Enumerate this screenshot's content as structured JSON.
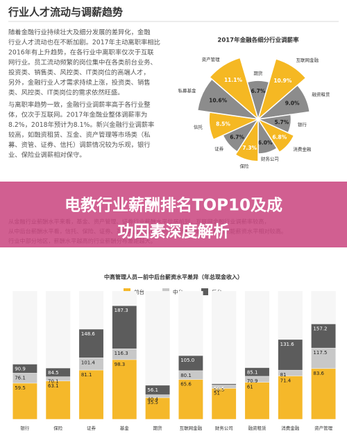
{
  "header": {
    "title": "行业人才流动与调薪趋势"
  },
  "paragraphs": [
    [
      "随着金融行业持续壮大及细分发展的差异化，金融",
      "行业人才流动也在不断加剧。2017年主动离职率相比",
      "2016年有上升趋势，在各行业中离职率仅次于互联",
      "网行业。员工流动频繁的岗位集中在各类前台业务、",
      "投资类、销售类、风控类、IT类岗位的高端人才，",
      "另外，金融行业人才需求持续上涨，投资类、销售",
      "类、风控类、IT类岗位的需求依然旺盛。"
    ],
    [
      "与离职率趋势一致，金融行业调薪率高于各行业整",
      "体，仅次于互联网。2017年金融业整体调薪率为",
      "8.2%，2018年预计为8.1%。新兴金融行业调薪率",
      "较高，如融资租赁、互金、资产管理等市场类（私",
      "募、资管、证券、信托）调薪情况较为乐观，银行",
      "业、保险业调薪相对保守。"
    ]
  ],
  "banner": {
    "lines": [
      "电教行业薪酬排名TOP10及成",
      "功因素深度解析"
    ]
  },
  "body": {
    "lines": [
      "从金融行业薪酬水平来看，基金、资产管理、证券行业薪酬水平位居前列，互联网金融行业调薪率较高，",
      "从中后台薪酬水平看，信托、保险、证券、互联网金融等行业前中后台差距较大，后台职能薪资水平相对较高。",
      "行业中部分地区，薪酬水平越高的行业薪酬分布差距越大。"
    ]
  },
  "chart_data": [
    {
      "type": "rose",
      "title": "2017年金融各细分行业调薪率",
      "categories": [
        "期货",
        "互联网金融",
        "融资租赁",
        "银行",
        "消费金融",
        "财务公司",
        "保险",
        "证券",
        "信托",
        "私募基金",
        "资产管理"
      ],
      "values": [
        6.7,
        10.9,
        9.0,
        5.7,
        6.8,
        6.0,
        7.3,
        6.7,
        8.5,
        10.6,
        11.1
      ],
      "value_labels": [
        "6.7%",
        "10.9%",
        "9.0%",
        "5.7%",
        "6.8%",
        "6.0%",
        "7.3%",
        "6.7%",
        "8.5%",
        "10.6%",
        "11.1%"
      ],
      "colors": [
        "#8c8c8c",
        "#f5b823",
        "#8c8c8c",
        "#8c8c8c",
        "#f5b823",
        "#8c8c8c",
        "#f5b823",
        "#8c8c8c",
        "#f5b823",
        "#8c8c8c",
        "#f5b823"
      ],
      "rlim": [
        0,
        12
      ]
    },
    {
      "type": "bar",
      "title": "中高管理人员—前中后台薪资水平差异（年总现金收入）",
      "categories": [
        "银行",
        "保险",
        "证券",
        "基金",
        "期货",
        "互联网金融",
        "财务公司",
        "融资租赁",
        "消费金融",
        "资产管理"
      ],
      "series": [
        {
          "name": "前台",
          "color": "#f5b82a",
          "values": [
            59.5,
            63.1,
            81.1,
            98.3,
            35.5,
            65.6,
            51,
            61,
            71.4,
            83.6
          ]
        },
        {
          "name": "中台",
          "color": "#c8c8c8",
          "values": [
            76.1,
            70.1,
            101.4,
            116.3,
            40.4,
            80.1,
            56.5,
            70.9,
            81,
            117.5
          ]
        },
        {
          "name": "后台",
          "color": "#5c5c5c",
          "values": [
            90.9,
            84.5,
            148.6,
            187.3,
            56.1,
            105,
            58.5,
            85.1,
            131.6,
            157.2
          ],
          "value_labels": [
            "90.9",
            "84.5",
            "148.6",
            "187.3",
            "56.1",
            "105.0",
            "58.5",
            "85.1",
            "131.6",
            "157.2"
          ]
        }
      ],
      "ylim": [
        0,
        200
      ]
    }
  ]
}
